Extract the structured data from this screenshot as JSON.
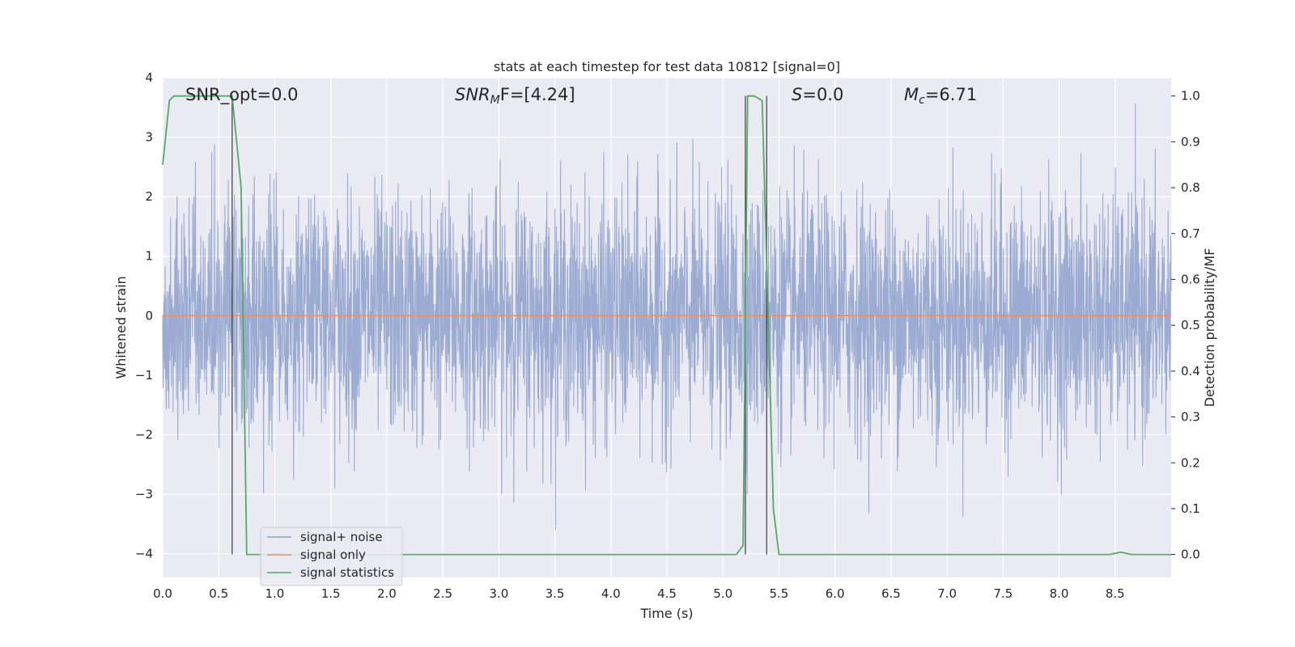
{
  "chart_data": {
    "type": "line",
    "title": "stats at each timestep for test data 10812 [signal=0]",
    "xlabel": "Time (s)",
    "ylabel": "Whitened strain",
    "ylabel_right": "Detection probability/MF",
    "xlim": [
      0.0,
      9.0
    ],
    "ylim": [
      -4.4,
      4.0
    ],
    "ylim_right": [
      -0.05,
      1.04
    ],
    "x_ticks": [
      "0.0",
      "0.5",
      "1.0",
      "1.5",
      "2.0",
      "2.5",
      "3.0",
      "3.5",
      "4.0",
      "4.5",
      "5.0",
      "5.5",
      "6.0",
      "6.5",
      "7.0",
      "7.5",
      "8.0",
      "8.5"
    ],
    "y_ticks": [
      "4",
      "3",
      "2",
      "1",
      "0",
      "−1",
      "−2",
      "−3",
      "−4"
    ],
    "y_ticks_right": [
      "1.0",
      "0.9",
      "0.8",
      "0.7",
      "0.6",
      "0.5",
      "0.4",
      "0.3",
      "0.2",
      "0.1",
      "0.0"
    ],
    "grid": true,
    "legend_position": "lower-left",
    "annotations": {
      "snr_opt": "SNR_opt=0.0",
      "snr_mf_base": "SNR",
      "snr_mf_sub": "M",
      "snr_mf_rest": "F=[4.24]",
      "s_italic": "S",
      "s_rest": "=0.0",
      "mc_base": "M",
      "mc_sub": "c",
      "mc_rest": "=6.71"
    },
    "series": [
      {
        "name": "signal+ noise",
        "color": "#8da0cb",
        "axis": "left",
        "description_of_values": "whitened noise, roughly Gaussian",
        "approx_range": [
          -3.6,
          3.6
        ]
      },
      {
        "name": "signal only",
        "color": "#e5926b",
        "axis": "left",
        "x": [
          0.0,
          9.0
        ],
        "y": [
          0.0,
          0.0
        ]
      },
      {
        "name": "signal statistics",
        "color": "#55a868",
        "axis": "right",
        "x": [
          0.0,
          0.06,
          0.1,
          0.62,
          0.7,
          0.75,
          1.0,
          5.12,
          5.18,
          5.22,
          5.28,
          5.35,
          5.4,
          5.45,
          5.5,
          8.45,
          8.55,
          8.65,
          9.0
        ],
        "y": [
          0.85,
          0.99,
          1.0,
          1.0,
          0.8,
          0.0,
          0.0,
          0.0,
          0.02,
          1.0,
          1.0,
          0.99,
          0.55,
          0.1,
          0.0,
          0.0,
          0.005,
          0.0,
          0.0
        ]
      }
    ],
    "vlines": [
      0.62,
      5.2,
      5.39
    ]
  }
}
